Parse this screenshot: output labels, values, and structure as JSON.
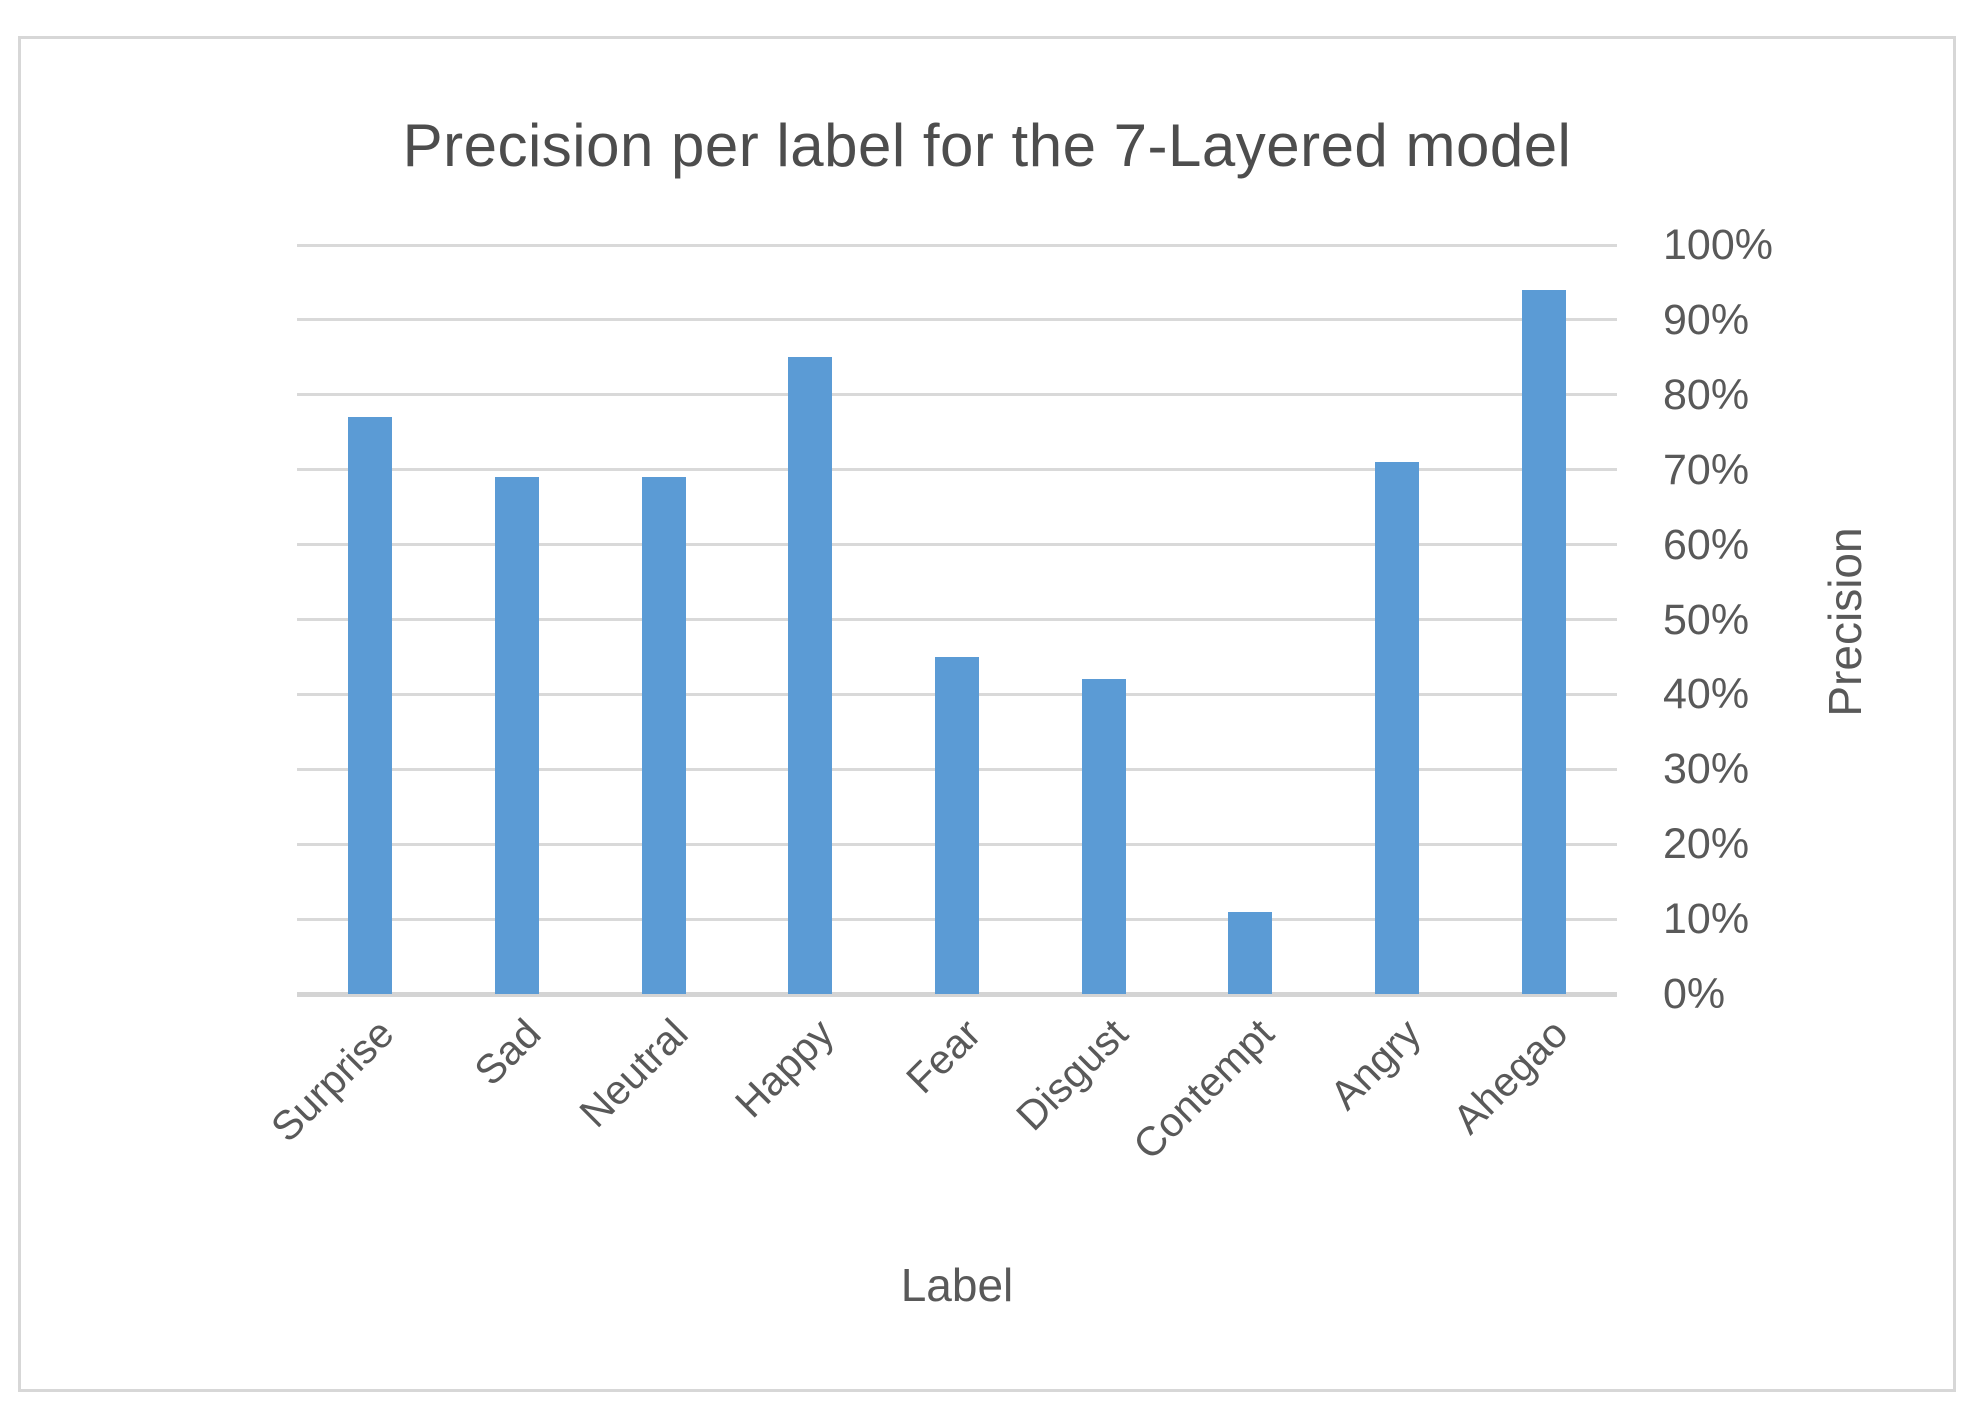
{
  "chart_data": {
    "type": "bar",
    "title": "Precision per label for the 7-Layered model",
    "xlabel": "Label",
    "ylabel": "Precision",
    "categories": [
      "Surprise",
      "Sad",
      "Neutral",
      "Happy",
      "Fear",
      "Disgust",
      "Contempt",
      "Angry",
      "Ahegao"
    ],
    "values": [
      77,
      69,
      69,
      85,
      45,
      42,
      11,
      71,
      94
    ],
    "y_ticks": [
      "0%",
      "10%",
      "20%",
      "30%",
      "40%",
      "50%",
      "60%",
      "70%",
      "80%",
      "90%",
      "100%"
    ],
    "ylim": [
      0,
      100
    ],
    "grid": true,
    "y_axis_side": "right",
    "legend": "none",
    "bar_color": "#5b9bd5"
  },
  "colors": {
    "bar": "#5b9bd5",
    "gridline": "#d9d9d9",
    "axis_line": "#d4d4d4",
    "title_text": "#4d4d4d",
    "axis_text": "#595959",
    "frame_border": "#d7d7d7",
    "background": "#ffffff"
  }
}
